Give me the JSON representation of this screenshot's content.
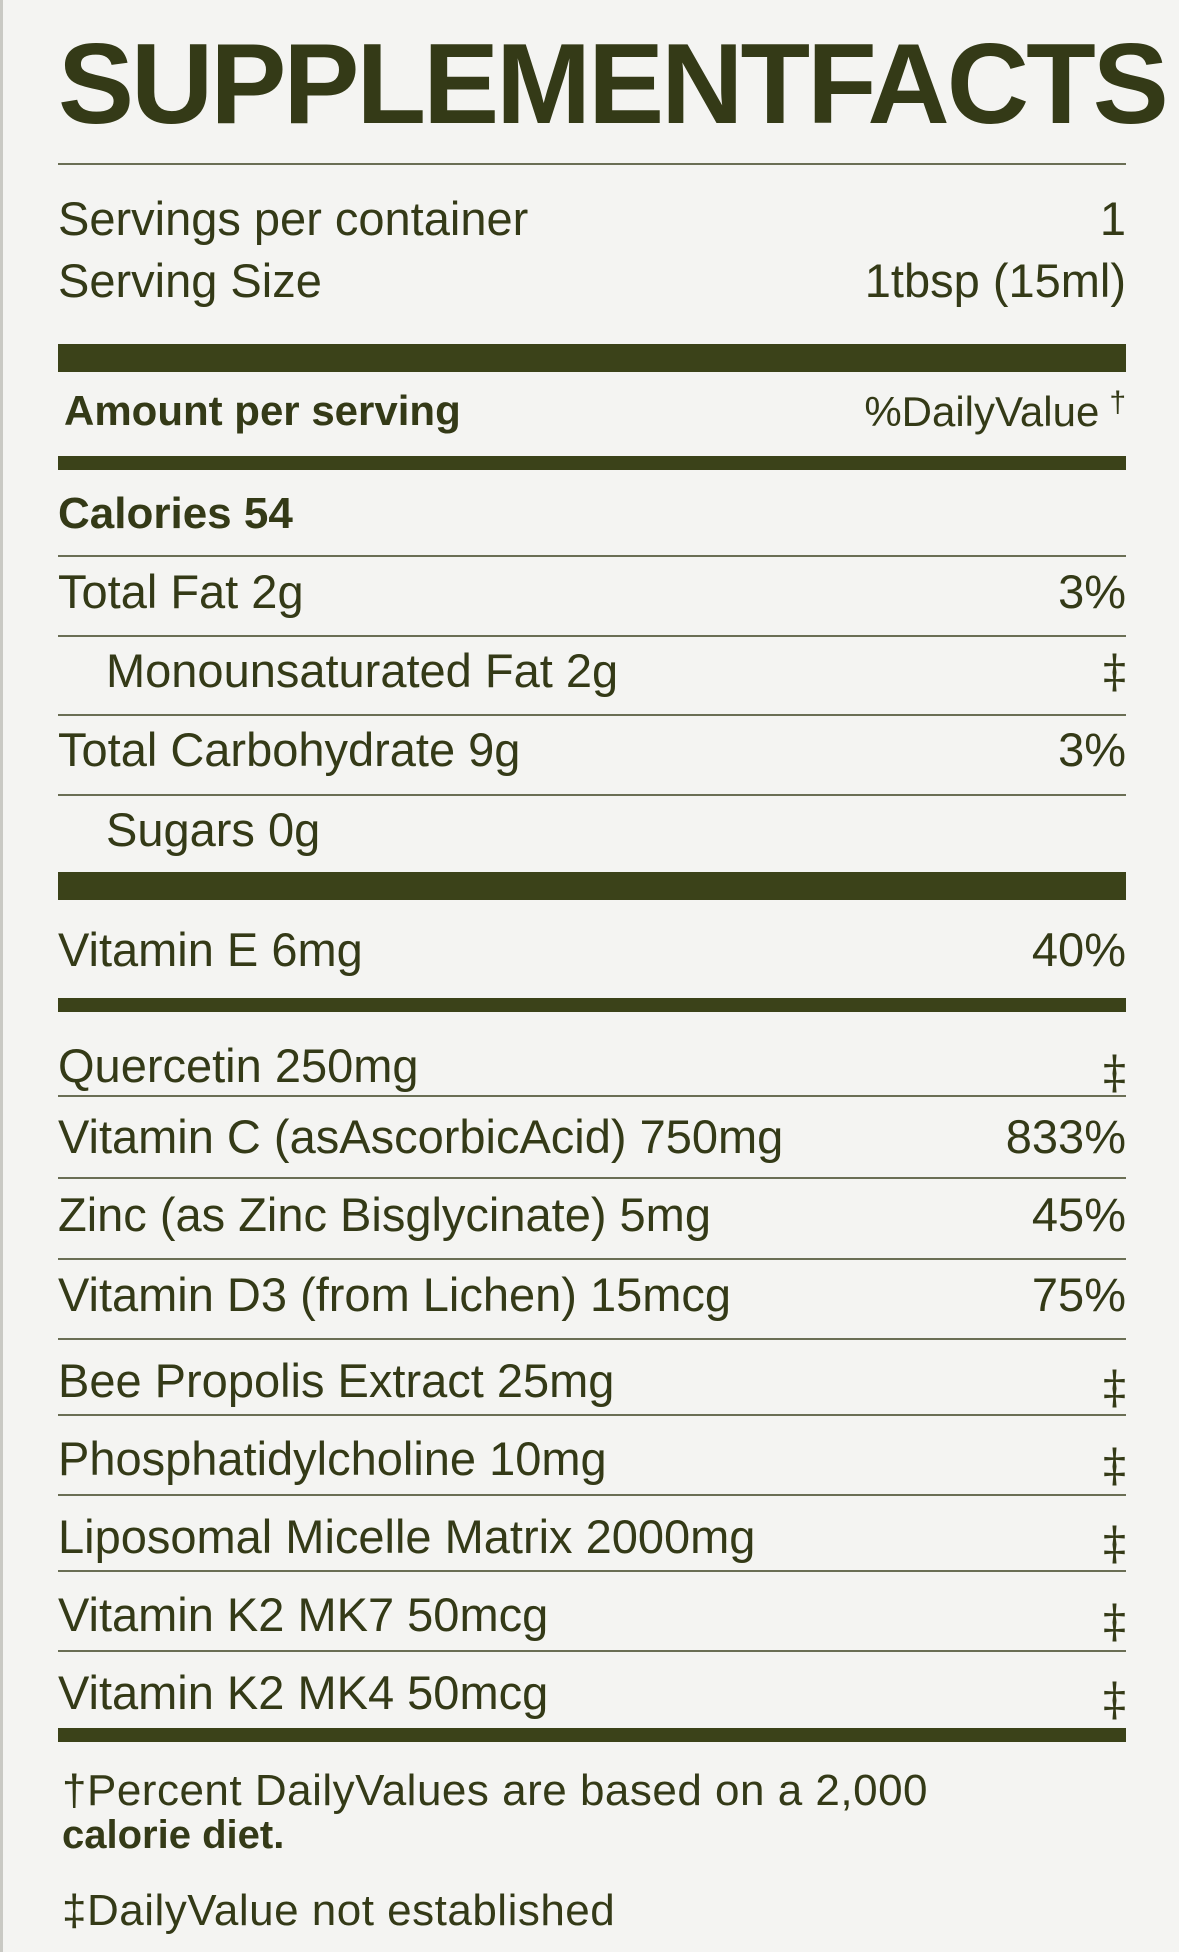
{
  "title": "SUPPLEMENTFACTS",
  "servings": {
    "per_container_label": "Servings per container",
    "per_container_value": "1",
    "size_label": "Serving Size",
    "size_value": "1tbsp (15ml)"
  },
  "header": {
    "amount_label": "Amount per serving",
    "dv_label": "%DailyValue",
    "dv_mark": "†"
  },
  "calories": "Calories 54",
  "macros": [
    {
      "name": "Total Fat 2g",
      "dv": "3%"
    },
    {
      "name": "Monounsaturated Fat 2g",
      "dv": "‡"
    },
    {
      "name": "Total Carbohydrate 9g",
      "dv": "3%"
    },
    {
      "name": "Sugars 0g",
      "dv": ""
    }
  ],
  "vitamin_e": {
    "name": "Vitamin E 6mg",
    "dv": "40%"
  },
  "ingredients": [
    {
      "name": "Quercetin 250mg",
      "dv": "‡"
    },
    {
      "name": "Vitamin C (asAscorbicAcid) 750mg",
      "dv": "833%"
    },
    {
      "name": "Zinc (as Zinc Bisglycinate) 5mg",
      "dv": "45%"
    },
    {
      "name": "Vitamin D3 (from Lichen) 15mcg",
      "dv": "75%"
    },
    {
      "name": "Bee Propolis Extract 25mg",
      "dv": "‡"
    },
    {
      "name": "Phosphatidylcholine 10mg",
      "dv": "‡"
    },
    {
      "name": "Liposomal Micelle Matrix 2000mg",
      "dv": "‡"
    },
    {
      "name": "Vitamin K2 MK7 50mcg",
      "dv": "‡"
    },
    {
      "name": "Vitamin K2 MK4 50mcg",
      "dv": "‡"
    }
  ],
  "footnotes": {
    "percent_line1": "†Percent DailyValues are based on a 2,000",
    "percent_line2": "calorie diet.",
    "not_established": "‡DailyValue not established"
  }
}
